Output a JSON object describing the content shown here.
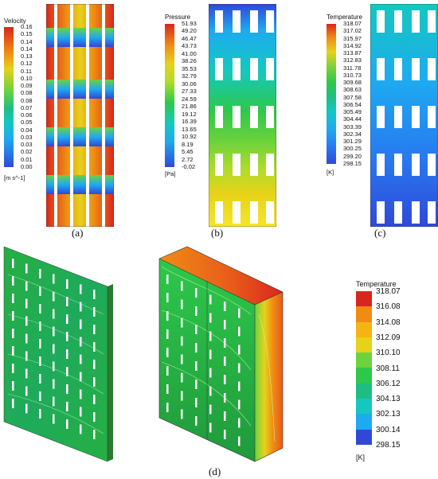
{
  "captions": {
    "a": "(a)",
    "b": "(b)",
    "c": "(c)",
    "d": "(d)"
  },
  "legends": {
    "velocity": {
      "title": "Velocity",
      "unit": "[m s^-1]",
      "ticks": [
        "0.16",
        "0.15",
        "0.14",
        "0.14",
        "0.13",
        "0.12",
        "0.11",
        "0.10",
        "0.09",
        "0.08",
        "0.08",
        "0.07",
        "0.06",
        "0.05",
        "0.04",
        "0.03",
        "0.03",
        "0.02",
        "0.01",
        "0.00"
      ]
    },
    "pressure": {
      "title": "Pressure",
      "unit": "[Pa]",
      "ticks": [
        "51.93",
        "49.20",
        "46.47",
        "43.73",
        "41.00",
        "38.26",
        "35.53",
        "32.79",
        "30.06",
        "27.33",
        "24.59",
        "21.86",
        "19.12",
        "16.39",
        "13.65",
        "10.92",
        "8.19",
        "5.45",
        "2.72",
        "-0.02"
      ]
    },
    "temperature_c": {
      "title": "Temperature",
      "unit": "[K]",
      "ticks": [
        "318.07",
        "317.02",
        "315.97",
        "314.92",
        "313.87",
        "312.83",
        "311.78",
        "310.73",
        "309.68",
        "308.63",
        "307.58",
        "306.54",
        "305.49",
        "304.44",
        "303.39",
        "302.34",
        "301.29",
        "300.25",
        "299.20",
        "298.15"
      ]
    },
    "temperature_d": {
      "title": "Temperature",
      "unit": "[K]",
      "ticks": [
        "318.07",
        "316.08",
        "314.08",
        "312.09",
        "310.10",
        "308.11",
        "306.12",
        "304.13",
        "302.13",
        "300.14",
        "298.15"
      ]
    }
  },
  "colors": {
    "colormap": [
      "#d9261c",
      "#e85a1a",
      "#f08c14",
      "#f5b414",
      "#e6d21a",
      "#b4dc28",
      "#6ed23c",
      "#2ec84a",
      "#1ebe82",
      "#14c8c0",
      "#1eaaf0",
      "#2878f0",
      "#3048d8"
    ]
  }
}
